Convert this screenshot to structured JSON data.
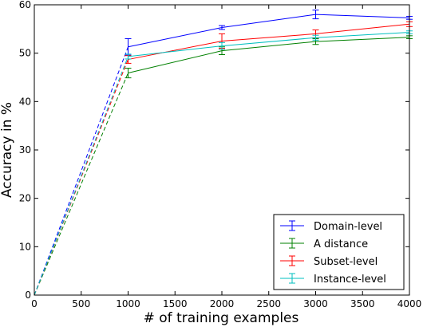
{
  "chart_data": {
    "type": "line",
    "title": "",
    "xlabel": "# of training examples",
    "ylabel": "Accuracy in %",
    "xlim": [
      0,
      4000
    ],
    "ylim": [
      0,
      60
    ],
    "xticks": [
      "0",
      "500",
      "1000",
      "1500",
      "2000",
      "2500",
      "3000",
      "3500",
      "4000"
    ],
    "yticks": [
      "0",
      "10",
      "20",
      "30",
      "40",
      "50",
      "60"
    ],
    "grid": false,
    "legend_position": "bottom-right",
    "x": [
      0,
      1000,
      2000,
      3000,
      4000
    ],
    "series": [
      {
        "name": "Domain-level",
        "color": "#0000ff",
        "values": [
          0,
          51.3,
          55.3,
          58.0,
          57.3
        ],
        "errors": [
          0,
          1.7,
          0.4,
          0.9,
          0.3
        ]
      },
      {
        "name": "A distance",
        "color": "#008000",
        "values": [
          0,
          45.9,
          50.5,
          52.4,
          53.3
        ],
        "errors": [
          0,
          1.0,
          0.8,
          0.6,
          0.3
        ]
      },
      {
        "name": "Subset-level",
        "color": "#ff0000",
        "values": [
          0,
          48.7,
          52.5,
          54.0,
          56.0
        ],
        "errors": [
          0,
          0.8,
          1.5,
          0.8,
          0.5
        ]
      },
      {
        "name": "Instance-level",
        "color": "#00bfbf",
        "values": [
          0,
          49.3,
          51.5,
          53.2,
          54.3
        ],
        "errors": [
          0,
          0.5,
          0.7,
          0.5,
          0.3
        ]
      }
    ]
  }
}
